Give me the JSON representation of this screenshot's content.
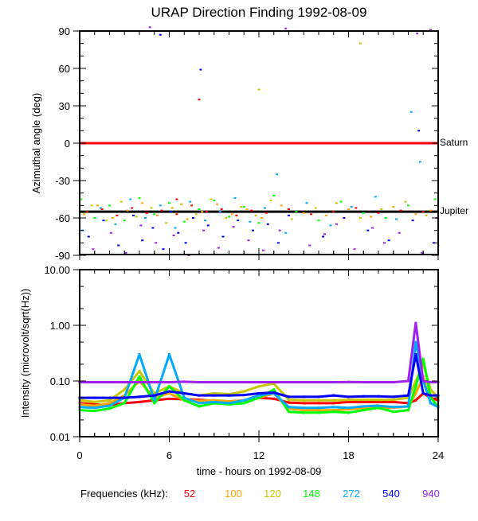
{
  "chart_data": [
    {
      "type": "scatter",
      "title": "URAP Direction Finding  1992-08-09",
      "xlabel": "",
      "ylabel": "Azimuthal angle (deg)",
      "xlim": [
        0,
        24
      ],
      "ylim": [
        -90,
        90
      ],
      "yticks": [
        "90",
        "60",
        "30",
        "0",
        "-30",
        "-60",
        "-90"
      ],
      "ytick_values": [
        90,
        60,
        30,
        0,
        -30,
        -60,
        -90
      ],
      "reference_lines": [
        {
          "name": "Saturn",
          "value": 0,
          "color": "#ff0000"
        },
        {
          "name": "Jupiter",
          "value": -55,
          "color": "#000000"
        }
      ],
      "series": [
        {
          "name": "52",
          "color": "#ff0000",
          "points": [
            [
              0.5,
              -55
            ],
            [
              1.5,
              -53
            ],
            [
              2.5,
              -58
            ],
            [
              3.5,
              -52
            ],
            [
              4.5,
              -56
            ],
            [
              5.5,
              -54
            ],
            [
              6.5,
              -57
            ],
            [
              7.5,
              -50
            ],
            [
              8.5,
              -55
            ],
            [
              9.5,
              -53
            ],
            [
              10.5,
              -58
            ],
            [
              11.5,
              -54
            ],
            [
              12.5,
              -56
            ],
            [
              14,
              -53
            ],
            [
              15.5,
              -57
            ],
            [
              17,
              -55
            ],
            [
              18.5,
              -52
            ],
            [
              20,
              -56
            ],
            [
              21.5,
              -54
            ],
            [
              23,
              -55
            ],
            [
              8,
              35
            ],
            [
              6.5,
              -45
            ]
          ]
        },
        {
          "name": "100",
          "color": "#ffa500",
          "points": [
            [
              0.3,
              -57
            ],
            [
              1.2,
              -50
            ],
            [
              2.2,
              -60
            ],
            [
              3.2,
              -54
            ],
            [
              4.2,
              -48
            ],
            [
              5.2,
              -58
            ],
            [
              6.2,
              -52
            ],
            [
              7.2,
              -61
            ],
            [
              8.2,
              -55
            ],
            [
              9.2,
              -49
            ],
            [
              10.2,
              -57
            ],
            [
              11.2,
              -53
            ],
            [
              12.2,
              -60
            ],
            [
              13.5,
              -50
            ],
            [
              15,
              -56
            ],
            [
              16.5,
              -58
            ],
            [
              18,
              -53
            ],
            [
              19.5,
              -59
            ],
            [
              21,
              -51
            ],
            [
              22.5,
              -57
            ],
            [
              23.5,
              -54
            ]
          ]
        },
        {
          "name": "120",
          "color": "#c8c800",
          "points": [
            [
              0.8,
              -50
            ],
            [
              1.8,
              -62
            ],
            [
              2.8,
              -47
            ],
            [
              3.8,
              -59
            ],
            [
              4.8,
              -52
            ],
            [
              5.8,
              -64
            ],
            [
              6.8,
              -49
            ],
            [
              7.8,
              -57
            ],
            [
              8.8,
              -45
            ],
            [
              9.8,
              -60
            ],
            [
              10.8,
              -51
            ],
            [
              11.8,
              -58
            ],
            [
              12.8,
              -46
            ],
            [
              14.2,
              -61
            ],
            [
              15.8,
              -52
            ],
            [
              17.2,
              -48
            ],
            [
              18.8,
              -60
            ],
            [
              20.2,
              -53
            ],
            [
              21.8,
              -47
            ],
            [
              23.2,
              -58
            ],
            [
              12,
              43
            ],
            [
              18.8,
              80
            ]
          ]
        },
        {
          "name": "148",
          "color": "#00ff00",
          "points": [
            [
              0.1,
              -45
            ],
            [
              1,
              -60
            ],
            [
              2,
              -50
            ],
            [
              3,
              -62
            ],
            [
              4,
              -44
            ],
            [
              5,
              -57
            ],
            [
              6,
              -48
            ],
            [
              7,
              -63
            ],
            [
              8,
              -53
            ],
            [
              9,
              -46
            ],
            [
              10,
              -59
            ],
            [
              11,
              -51
            ],
            [
              12,
              -64
            ],
            [
              13,
              -42
            ],
            [
              14.5,
              -55
            ],
            [
              16,
              -62
            ],
            [
              17.5,
              -47
            ],
            [
              19,
              -56
            ],
            [
              20.5,
              -60
            ],
            [
              22,
              -50
            ],
            [
              23.8,
              -45
            ]
          ]
        },
        {
          "name": "272",
          "color": "#00aaff",
          "points": [
            [
              0.2,
              -70
            ],
            [
              1.4,
              -52
            ],
            [
              2.4,
              -65
            ],
            [
              3.4,
              -45
            ],
            [
              4.4,
              -60
            ],
            [
              5.4,
              -50
            ],
            [
              6.4,
              -68
            ],
            [
              7.4,
              -47
            ],
            [
              8.4,
              -62
            ],
            [
              9.4,
              -55
            ],
            [
              10.4,
              -44
            ],
            [
              11.4,
              -63
            ],
            [
              12.4,
              -52
            ],
            [
              13.2,
              -25
            ],
            [
              13.8,
              -72
            ],
            [
              15.2,
              -48
            ],
            [
              16.8,
              -66
            ],
            [
              18.2,
              -51
            ],
            [
              19.8,
              -43
            ],
            [
              21.2,
              -61
            ],
            [
              22.8,
              -15
            ],
            [
              22.2,
              25
            ]
          ]
        },
        {
          "name": "540",
          "color": "#0000ff",
          "points": [
            [
              0.6,
              -75
            ],
            [
              1.6,
              -62
            ],
            [
              2.6,
              -82
            ],
            [
              3.6,
              -58
            ],
            [
              4.2,
              -78
            ],
            [
              4.9,
              -68
            ],
            [
              5.6,
              -85
            ],
            [
              6.1,
              -55
            ],
            [
              6.6,
              -72
            ],
            [
              7.1,
              -80
            ],
            [
              7.6,
              -60
            ],
            [
              8.6,
              -66
            ],
            [
              9.6,
              -75
            ],
            [
              10.6,
              -62
            ],
            [
              11.6,
              -70
            ],
            [
              12.6,
              -65
            ],
            [
              13.3,
              -80
            ],
            [
              14,
              -58
            ],
            [
              16.3,
              -75
            ],
            [
              17.7,
              -60
            ],
            [
              19.3,
              -70
            ],
            [
              20.7,
              -78
            ],
            [
              22.3,
              -62
            ],
            [
              23.7,
              -80
            ],
            [
              5.4,
              87
            ],
            [
              8.1,
              59
            ],
            [
              22.7,
              10
            ]
          ]
        },
        {
          "name": "940",
          "color": "#a020f0",
          "points": [
            [
              0.9,
              -85
            ],
            [
              2.1,
              -72
            ],
            [
              3.1,
              -88
            ],
            [
              4.1,
              -66
            ],
            [
              5.1,
              -80
            ],
            [
              6.3,
              -74
            ],
            [
              7.3,
              -90
            ],
            [
              8.3,
              -70
            ],
            [
              9.3,
              -84
            ],
            [
              10.3,
              -67
            ],
            [
              11.3,
              -78
            ],
            [
              12.3,
              -86
            ],
            [
              13.4,
              -70
            ],
            [
              15.4,
              -82
            ],
            [
              16.4,
              -73
            ],
            [
              17.2,
              -65
            ],
            [
              18.4,
              -85
            ],
            [
              19.6,
              -68
            ],
            [
              20.4,
              -80
            ],
            [
              21.4,
              -72
            ],
            [
              22.9,
              -88
            ],
            [
              23.9,
              -60
            ],
            [
              4.7,
              93
            ],
            [
              13.8,
              92
            ],
            [
              23.5,
              91
            ],
            [
              22.6,
              88
            ]
          ]
        }
      ]
    },
    {
      "type": "line",
      "xlabel": "time - hours on 1992-08-09",
      "ylabel": "Intensity (microvolt/sqrt(Hz))",
      "xlim": [
        0,
        24
      ],
      "ylim": [
        0.01,
        10
      ],
      "yscale": "log",
      "xticks": [
        "0",
        "6",
        "12",
        "18",
        "24"
      ],
      "xtick_values": [
        0,
        6,
        12,
        18,
        24
      ],
      "yticks": [
        "10.00",
        "1.00",
        "0.10",
        "0.01"
      ],
      "ytick_values": [
        10,
        1,
        0.1,
        0.01
      ],
      "x": [
        0,
        1,
        2,
        3,
        4,
        5,
        6,
        7,
        8,
        9,
        10,
        11,
        12,
        13,
        14,
        15,
        16,
        17,
        18,
        19,
        20,
        21,
        22,
        22.5,
        23,
        23.5,
        24
      ],
      "legend_title": "Frequencies (kHz):",
      "legend_placement": "bottom",
      "series": [
        {
          "name": "52",
          "color": "#ff0000",
          "values": [
            0.04,
            0.038,
            0.037,
            0.04,
            0.042,
            0.045,
            0.048,
            0.047,
            0.046,
            0.044,
            0.043,
            0.045,
            0.05,
            0.048,
            0.041,
            0.04,
            0.04,
            0.04,
            0.042,
            0.042,
            0.042,
            0.042,
            0.04,
            0.045,
            0.06,
            0.05,
            0.045
          ]
        },
        {
          "name": "100",
          "color": "#ffa500",
          "values": [
            0.038,
            0.036,
            0.04,
            0.055,
            0.1,
            0.05,
            0.06,
            0.045,
            0.044,
            0.045,
            0.043,
            0.045,
            0.05,
            0.06,
            0.032,
            0.03,
            0.03,
            0.03,
            0.031,
            0.033,
            0.034,
            0.033,
            0.035,
            0.06,
            0.12,
            0.04,
            0.035
          ]
        },
        {
          "name": "120",
          "color": "#c8c800",
          "values": [
            0.045,
            0.042,
            0.045,
            0.07,
            0.15,
            0.06,
            0.08,
            0.06,
            0.055,
            0.06,
            0.058,
            0.065,
            0.08,
            0.09,
            0.046,
            0.045,
            0.045,
            0.045,
            0.046,
            0.046,
            0.046,
            0.046,
            0.05,
            0.1,
            0.2,
            0.07,
            0.05
          ]
        },
        {
          "name": "148",
          "color": "#00ff00",
          "values": [
            0.03,
            0.029,
            0.032,
            0.04,
            0.12,
            0.04,
            0.08,
            0.045,
            0.035,
            0.04,
            0.038,
            0.04,
            0.05,
            0.07,
            0.028,
            0.027,
            0.027,
            0.028,
            0.027,
            0.03,
            0.033,
            0.028,
            0.03,
            0.08,
            0.25,
            0.05,
            0.035
          ]
        },
        {
          "name": "272",
          "color": "#00aaff",
          "values": [
            0.034,
            0.033,
            0.036,
            0.05,
            0.3,
            0.045,
            0.3,
            0.05,
            0.04,
            0.042,
            0.04,
            0.045,
            0.055,
            0.06,
            0.034,
            0.033,
            0.033,
            0.034,
            0.033,
            0.035,
            0.036,
            0.034,
            0.035,
            0.5,
            0.1,
            0.04,
            0.034
          ]
        },
        {
          "name": "540",
          "color": "#0000ff",
          "values": [
            0.05,
            0.05,
            0.05,
            0.05,
            0.052,
            0.055,
            0.065,
            0.06,
            0.055,
            0.055,
            0.055,
            0.056,
            0.06,
            0.062,
            0.052,
            0.052,
            0.052,
            0.055,
            0.052,
            0.053,
            0.053,
            0.052,
            0.055,
            0.3,
            0.06,
            0.055,
            0.055
          ]
        },
        {
          "name": "940",
          "color": "#a020f0",
          "values": [
            0.095,
            0.095,
            0.095,
            0.095,
            0.095,
            0.095,
            0.095,
            0.097,
            0.095,
            0.095,
            0.095,
            0.095,
            0.095,
            0.095,
            0.095,
            0.095,
            0.095,
            0.095,
            0.096,
            0.095,
            0.095,
            0.095,
            0.1,
            1.1,
            0.1,
            0.095,
            0.095
          ]
        }
      ]
    }
  ]
}
